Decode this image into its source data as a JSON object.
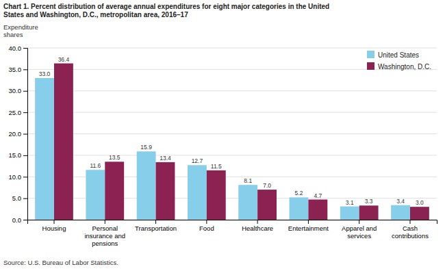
{
  "chart_data": {
    "type": "bar",
    "title": "Chart 1. Percent distribution of average annual expenditures for eight major categories in the United\nStates and Washington, D.C., metropolitan area, 2016–17",
    "ylabel": "Expenditure\nshares",
    "categories": [
      "Housing",
      "Personal\ninsurance and\npensions",
      "Transportation",
      "Food",
      "Healthcare",
      "Entertainment",
      "Apparel and\nservices",
      "Cash\ncontributions"
    ],
    "series": [
      {
        "name": "United States",
        "color": "#87CEEB",
        "values": [
          33.0,
          11.6,
          15.9,
          12.7,
          8.1,
          5.2,
          3.1,
          3.4
        ],
        "value_labels": [
          "33.0",
          "11.6",
          "15.9",
          "12.7",
          "8.1",
          "5.2",
          "3.1",
          "3.4"
        ]
      },
      {
        "name": "Washington, D.C.",
        "color": "#8B2252",
        "values": [
          36.4,
          13.5,
          13.4,
          11.5,
          7.0,
          4.7,
          3.3,
          3.0
        ],
        "value_labels": [
          "36.4",
          "13.5",
          "13.4",
          "11.5",
          "7.0",
          "4.7",
          "3.3",
          "3.0"
        ]
      }
    ],
    "ylim": [
      0,
      40.0
    ],
    "yticks": [
      {
        "value": 0,
        "label": "0.0"
      },
      {
        "value": 5,
        "label": "5.0"
      },
      {
        "value": 10,
        "label": "10.0"
      },
      {
        "value": 15,
        "label": "15.0"
      },
      {
        "value": 20,
        "label": "20.0"
      },
      {
        "value": 25,
        "label": "25.0"
      },
      {
        "value": 30,
        "label": "30.0"
      },
      {
        "value": 35,
        "label": "35.0"
      },
      {
        "value": 40,
        "label": "40.0"
      }
    ],
    "grid": true,
    "legend": "upper right",
    "data_labels": true,
    "annotations": [
      "Source: U.S. Bureau of Labor Statistics."
    ]
  }
}
